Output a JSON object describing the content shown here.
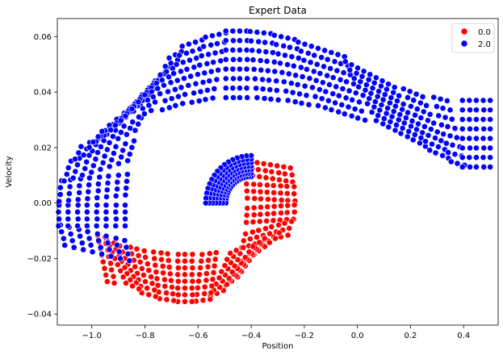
{
  "chart_data": {
    "type": "scatter",
    "title": "Expert Data",
    "xlabel": "Position",
    "ylabel": "Velocity",
    "xlim": [
      -1.13,
      0.53
    ],
    "ylim": [
      -0.044,
      0.0665
    ],
    "x_ticks": [
      -1.0,
      -0.8,
      -0.6,
      -0.4,
      -0.2,
      0.0,
      0.2,
      0.4
    ],
    "x_tick_labels": [
      "−1.0",
      "−0.8",
      "−0.6",
      "−0.4",
      "−0.2",
      "0.0",
      "0.2",
      "0.4"
    ],
    "y_ticks": [
      -0.04,
      -0.02,
      0.0,
      0.02,
      0.04,
      0.06
    ],
    "y_tick_labels": [
      "−0.04",
      "−0.02",
      "0.00",
      "0.02",
      "0.04",
      "0.06"
    ],
    "grid": false,
    "legend_position": "top-right",
    "series": [
      {
        "name": "0.0",
        "color": "#ff0000",
        "center_path": [
          [
            -0.34,
            0.014
          ],
          [
            -0.33,
            0.008
          ],
          [
            -0.325,
            0.0
          ],
          [
            -0.33,
            -0.007
          ],
          [
            -0.35,
            -0.014
          ],
          [
            -0.39,
            -0.019
          ],
          [
            -0.45,
            -0.023
          ],
          [
            -0.52,
            -0.026
          ],
          [
            -0.6,
            -0.027
          ],
          [
            -0.68,
            -0.027
          ],
          [
            -0.76,
            -0.026
          ],
          [
            -0.84,
            -0.024
          ],
          [
            -0.91,
            -0.021
          ],
          [
            -0.96,
            -0.02
          ]
        ],
        "band_width": 0.0085,
        "rows": 8
      },
      {
        "name": "2.0",
        "color": "#0000ff",
        "center_path": [
          [
            -0.98,
            -0.018
          ],
          [
            -1.0,
            -0.01
          ],
          [
            -1.0,
            0.0
          ],
          [
            -0.99,
            0.01
          ],
          [
            -0.96,
            0.019
          ],
          [
            -0.92,
            0.027
          ],
          [
            -0.86,
            0.034
          ],
          [
            -0.78,
            0.041
          ],
          [
            -0.7,
            0.045
          ],
          [
            -0.6,
            0.048
          ],
          [
            -0.5,
            0.05
          ],
          [
            -0.4,
            0.05
          ],
          [
            -0.3,
            0.049
          ],
          [
            -0.2,
            0.047
          ],
          [
            -0.1,
            0.044
          ],
          [
            0.0,
            0.041
          ],
          [
            0.1,
            0.036
          ],
          [
            0.2,
            0.031
          ],
          [
            0.3,
            0.027
          ],
          [
            0.38,
            0.025
          ],
          [
            0.44,
            0.025
          ],
          [
            0.5,
            0.025
          ]
        ],
        "band_width": 0.012,
        "rows": 8,
        "inner_fan": {
          "center": [
            -0.4,
            0.0
          ],
          "angle_range_deg": [
            90,
            180
          ],
          "radius_range": [
            0.1,
            0.18
          ],
          "rows": 7,
          "points_per_row": 16
        }
      }
    ]
  }
}
